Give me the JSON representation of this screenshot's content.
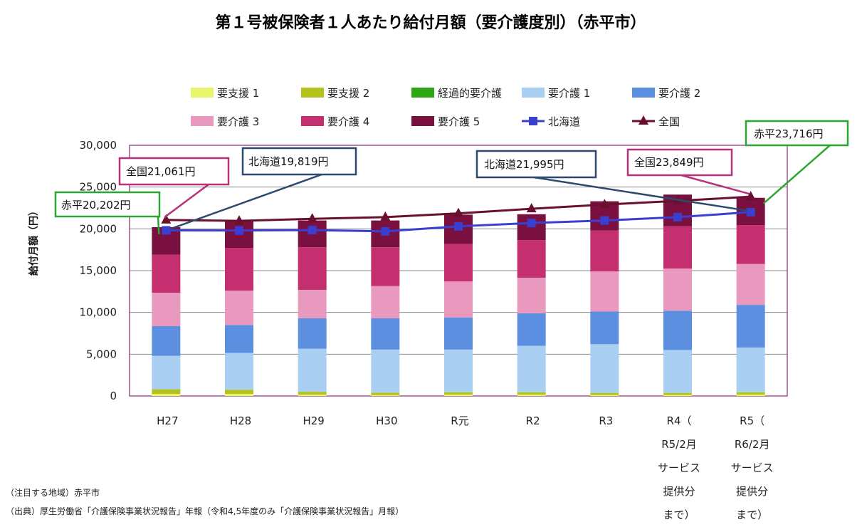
{
  "chart_data": {
    "type": "bar",
    "title": "第１号被保険者１人あたり給付月額（要介護度別）（赤平市）",
    "ylabel": "給付月額（円）",
    "xlabel": "",
    "ylim": [
      0,
      30000
    ],
    "yticks": [
      "0",
      "5,000",
      "10,000",
      "15,000",
      "20,000",
      "25,000",
      "30,000"
    ],
    "grid": true,
    "legend_position": "top",
    "categories": [
      [
        "H27"
      ],
      [
        "H28"
      ],
      [
        "H29"
      ],
      [
        "H30"
      ],
      [
        "R元"
      ],
      [
        "R2"
      ],
      [
        "R3"
      ],
      [
        "R4（",
        "R5/2月",
        "サービス",
        "提供分",
        "まで）"
      ],
      [
        "R5（",
        "R6/2月",
        "サービス",
        "提供分",
        "まで）"
      ]
    ],
    "stacked_series": [
      {
        "name": "要支援 1",
        "color": "#e6f56b",
        "values": [
          250,
          250,
          150,
          100,
          150,
          150,
          120,
          120,
          150
        ]
      },
      {
        "name": "要支援 2",
        "color": "#b4c21c",
        "values": [
          550,
          500,
          350,
          300,
          300,
          300,
          250,
          250,
          300
        ]
      },
      {
        "name": "経過的要介護",
        "color": "#2ea614",
        "values": [
          0,
          0,
          0,
          0,
          0,
          0,
          0,
          0,
          0
        ]
      },
      {
        "name": "要介護 1",
        "color": "#a9cff2",
        "values": [
          4000,
          4400,
          5150,
          5150,
          5100,
          5550,
          5830,
          5130,
          5350
        ]
      },
      {
        "name": "要介護 2",
        "color": "#5c8fdf",
        "values": [
          3550,
          3350,
          3650,
          3750,
          3850,
          3900,
          3900,
          4700,
          5100
        ]
      },
      {
        "name": "要介護 3",
        "color": "#e899bd",
        "values": [
          4000,
          4100,
          3400,
          3850,
          4300,
          4250,
          4800,
          5050,
          4900
        ]
      },
      {
        "name": "要介護 4",
        "color": "#c4306f",
        "values": [
          4550,
          5100,
          5100,
          4650,
          4500,
          4500,
          4900,
          5050,
          4650
        ]
      },
      {
        "name": "要介護 5",
        "color": "#7a1040",
        "values": [
          3302,
          3300,
          3200,
          3200,
          3500,
          3100,
          3500,
          3800,
          3266
        ]
      }
    ],
    "line_series": [
      {
        "name": "北海道",
        "color": "#3a3fd0",
        "marker": "square",
        "values": [
          19819,
          19800,
          19850,
          19700,
          20300,
          20700,
          21000,
          21400,
          21995
        ]
      },
      {
        "name": "全国",
        "color": "#6b0f2e",
        "marker": "triangle",
        "values": [
          21061,
          20950,
          21200,
          21400,
          21850,
          22400,
          22900,
          23350,
          23849
        ]
      }
    ],
    "annotations": [
      {
        "text": "赤平20,202円",
        "color": "#2aa632"
      },
      {
        "text": "全国21,061円",
        "color": "#b8317a"
      },
      {
        "text": "北海道19,819円",
        "color": "#2c4a6e"
      },
      {
        "text": "北海道21,995円",
        "color": "#2c4a6e"
      },
      {
        "text": "全国23,849円",
        "color": "#b8317a"
      },
      {
        "text": "赤平23,716円",
        "color": "#2aa632"
      }
    ]
  },
  "notes": {
    "focus": "（注目する地域）赤平市",
    "source": "（出典）厚生労働省「介護保険事業状況報告」年報（令和4,5年度のみ「介護保険事業状況報告」月報）"
  }
}
